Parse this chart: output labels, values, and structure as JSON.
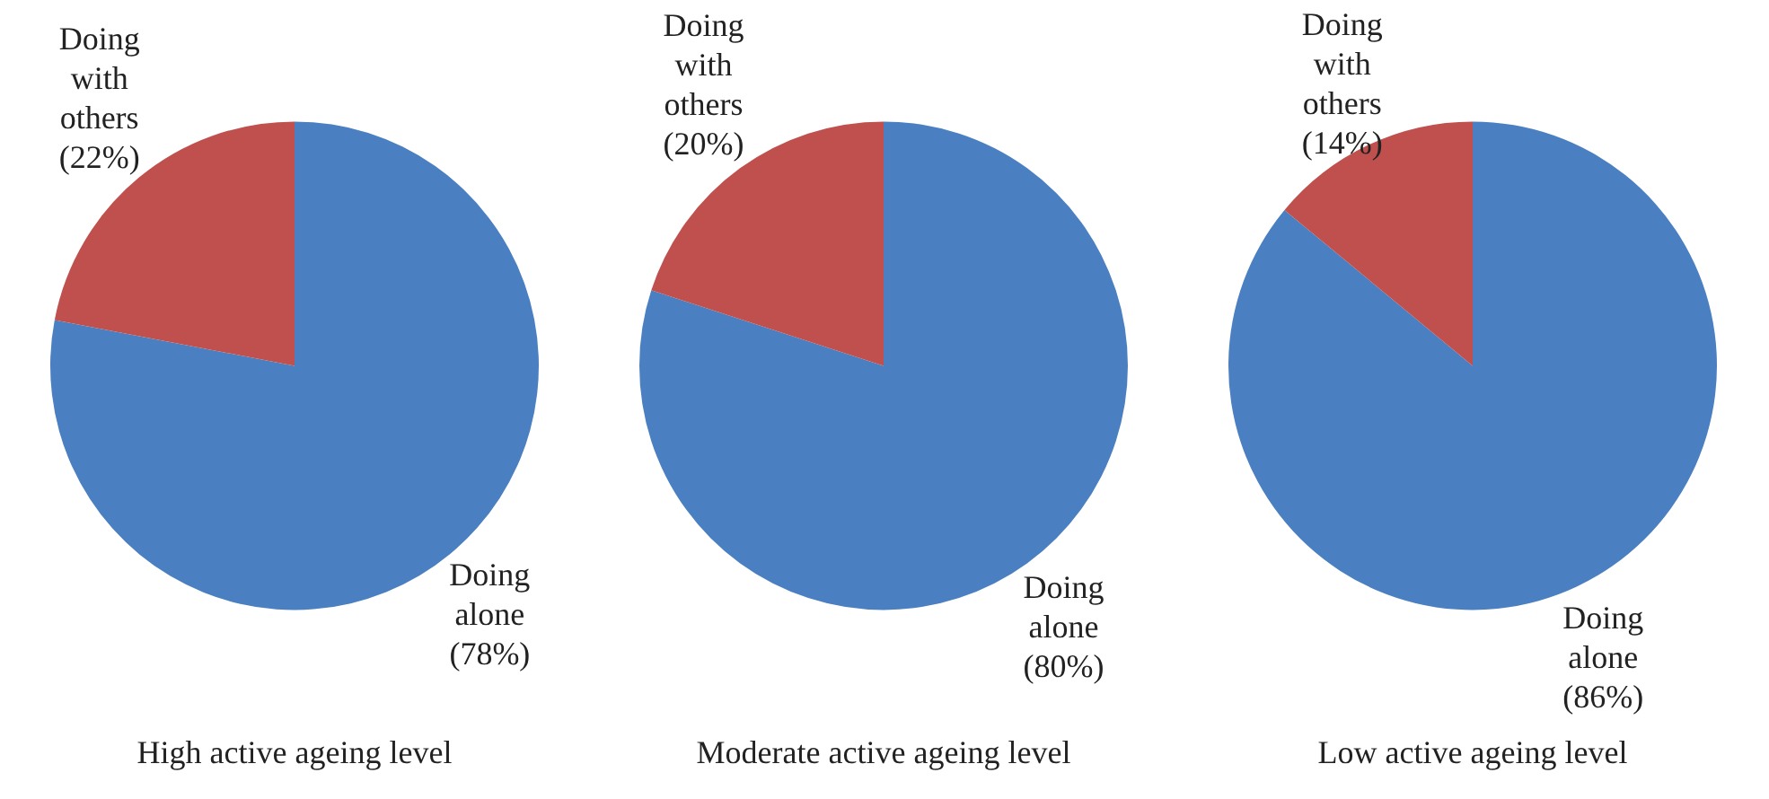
{
  "chart_data": [
    {
      "type": "pie",
      "title": "High active ageing level",
      "categories": [
        "Doing alone",
        "Doing with others"
      ],
      "values": [
        78,
        22
      ],
      "colors": [
        "#4a7fc1",
        "#c0504d"
      ],
      "value_labels": [
        "(78%)",
        "(22%)"
      ],
      "legend": false
    },
    {
      "type": "pie",
      "title": "Moderate active ageing level",
      "categories": [
        "Doing alone",
        "Doing with others"
      ],
      "values": [
        80,
        20
      ],
      "colors": [
        "#4a7fc1",
        "#c0504d"
      ],
      "value_labels": [
        "(80%)",
        "(20%)"
      ],
      "legend": false
    },
    {
      "type": "pie",
      "title": "Low active ageing level",
      "categories": [
        "Doing alone",
        "Doing with others"
      ],
      "values": [
        86,
        14
      ],
      "colors": [
        "#4a7fc1",
        "#c0504d"
      ],
      "value_labels": [
        "(86%)",
        "(14%)"
      ],
      "legend": false
    }
  ]
}
